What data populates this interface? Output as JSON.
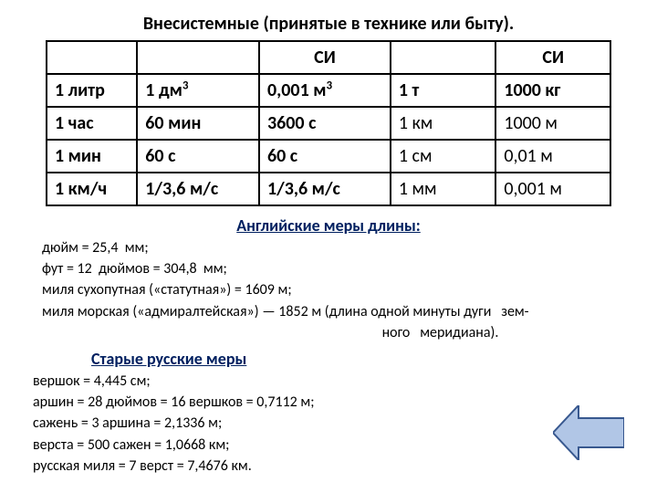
{
  "title": "Внесистемные (принятые в технике или быту).",
  "table": {
    "header": [
      "",
      "",
      "СИ",
      "",
      "СИ"
    ],
    "rows": [
      [
        {
          "t": "1 литр",
          "b": true
        },
        {
          "t": "1 дм",
          "sup": "3",
          "b": true
        },
        {
          "t": "0,001 м",
          "sup": "3",
          "b": true
        },
        {
          "t": "1 т",
          "b": true
        },
        {
          "t": "1000 кг",
          "b": true
        }
      ],
      [
        {
          "t": "1 час",
          "b": true
        },
        {
          "t": "60 мин",
          "b": true
        },
        {
          "t": "3600 с",
          "b": true
        },
        {
          "t": "1 км",
          "b": false
        },
        {
          "t": "1000 м",
          "b": false
        }
      ],
      [
        {
          "t": "1 мин",
          "b": true
        },
        {
          "t": "60 с",
          "b": true
        },
        {
          "t": "60 с",
          "b": true
        },
        {
          "t": "1 см",
          "b": false
        },
        {
          "t": "0,01   м",
          "b": false
        }
      ],
      [
        {
          "t": "1 км/ч",
          "b": true
        },
        {
          "t": "1/3,6 м/с",
          "b": true
        },
        {
          "t": "1/3,6 м/с",
          "b": true
        },
        {
          "t": "1 мм",
          "b": false
        },
        {
          "t": "0,001 м",
          "b": false
        }
      ]
    ]
  },
  "english_title": "Английские меры длины:",
  "english_lines": [
    "дюйм = 25,4  мм;",
    "фут = 12  дюймов = 304,8  мм;",
    "миля сухопутная («статутная») = 1609 м;",
    "миля морская («адмиралтейская») — 1852 м (длина одной минуты дуги   зем-",
    "                                                                                                       ного   меридиана)."
  ],
  "russian_title": "Старые русские меры",
  "russian_lines": [
    "вершок = 4,445 см;",
    "аршин = 28   дюймов = 16   вершков = 0,7112 м;",
    "сажень = 3  аршина = 2,1336  м;",
    "верста = 500 сажен = 1,0668  км;",
    "русская миля = 7 верст = 7,4676 км."
  ],
  "arrow": {
    "fill": "#b1c6e6",
    "stroke": "#38588f",
    "stroke_width": 2
  }
}
